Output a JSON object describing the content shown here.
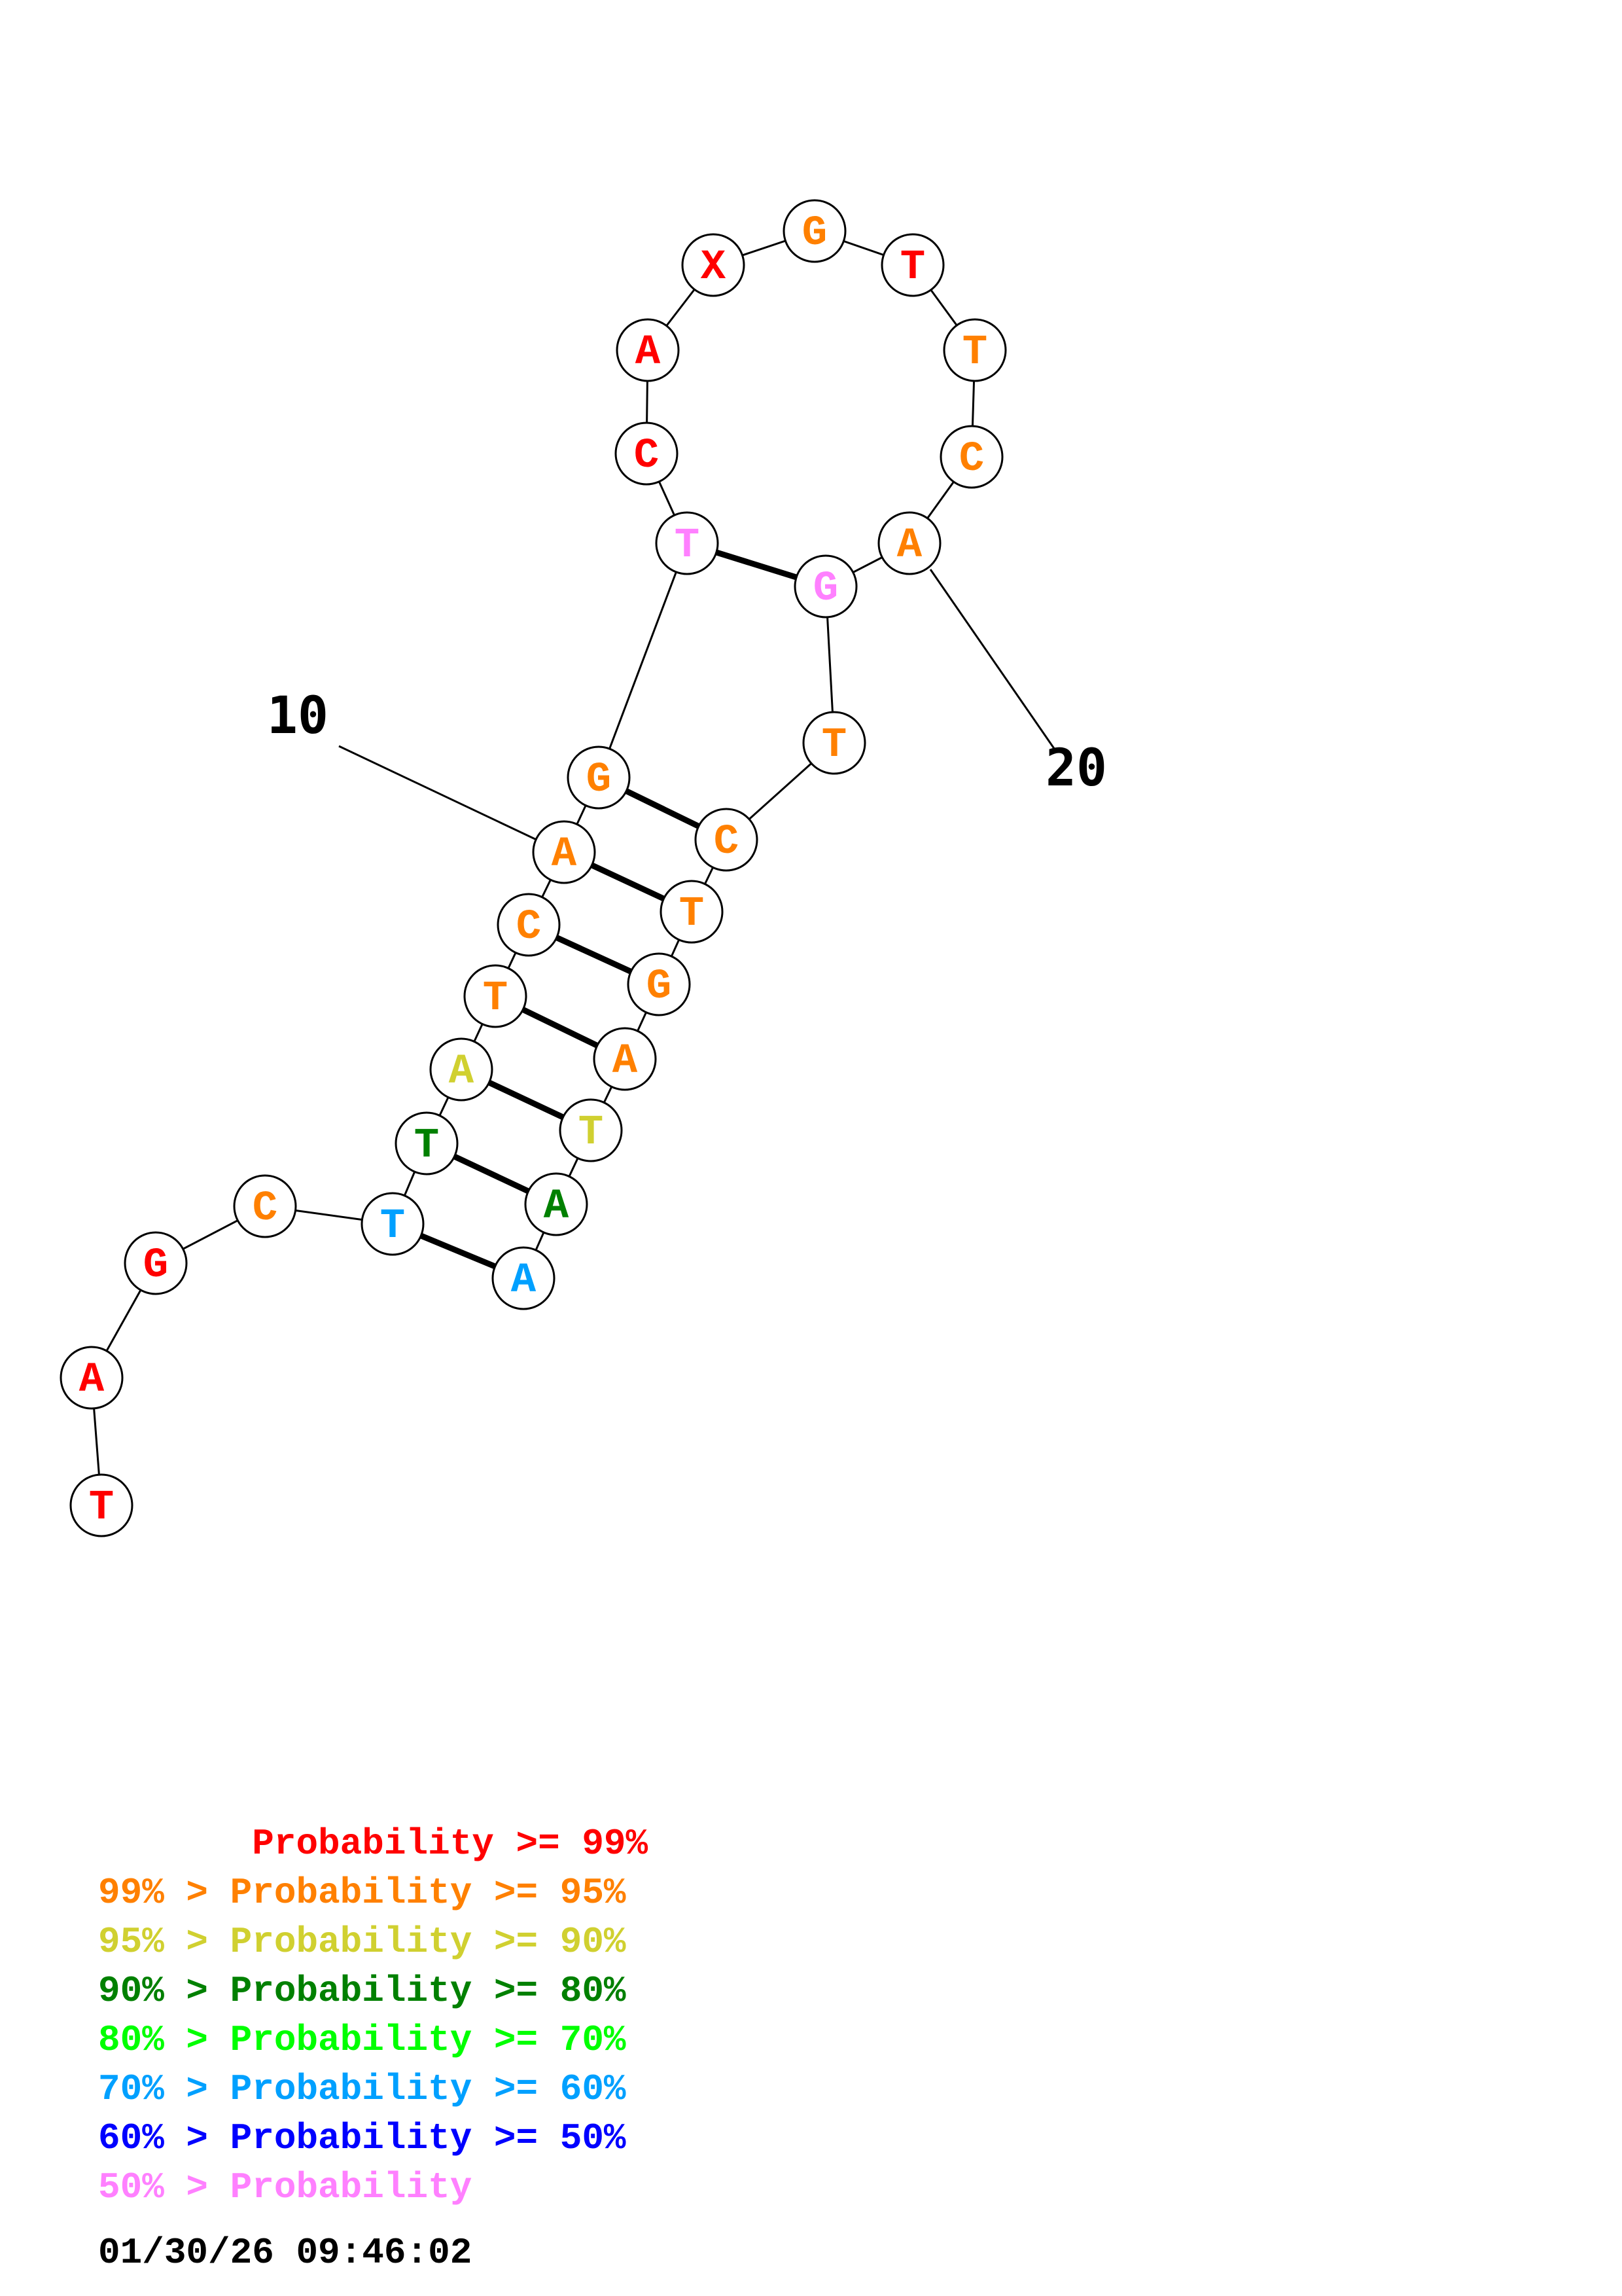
{
  "colors": {
    "p99": "#ff0000",
    "p95": "#ff8000",
    "p90": "#d0d030",
    "p80": "#008000",
    "p70": "#00ff00",
    "p60": "#00a0ff",
    "p50": "#0000ff",
    "plow": "#ff80ff"
  },
  "nucleotides": [
    {
      "index": 1,
      "base": "T",
      "prob": "p99"
    },
    {
      "index": 2,
      "base": "A",
      "prob": "p99"
    },
    {
      "index": 3,
      "base": "G",
      "prob": "p99"
    },
    {
      "index": 4,
      "base": "C",
      "prob": "p95"
    },
    {
      "index": 5,
      "base": "T",
      "prob": "p60"
    },
    {
      "index": 6,
      "base": "T",
      "prob": "p80"
    },
    {
      "index": 7,
      "base": "A",
      "prob": "p90"
    },
    {
      "index": 8,
      "base": "T",
      "prob": "p95"
    },
    {
      "index": 9,
      "base": "C",
      "prob": "p95"
    },
    {
      "index": 10,
      "base": "A",
      "prob": "p95"
    },
    {
      "index": 11,
      "base": "G",
      "prob": "p95"
    },
    {
      "index": 12,
      "base": "T",
      "prob": "plow"
    },
    {
      "index": 13,
      "base": "C",
      "prob": "p99"
    },
    {
      "index": 14,
      "base": "A",
      "prob": "p99"
    },
    {
      "index": 15,
      "base": "X",
      "prob": "p99"
    },
    {
      "index": 16,
      "base": "G",
      "prob": "p95"
    },
    {
      "index": 17,
      "base": "T",
      "prob": "p99"
    },
    {
      "index": 18,
      "base": "T",
      "prob": "p95"
    },
    {
      "index": 19,
      "base": "C",
      "prob": "p95"
    },
    {
      "index": 20,
      "base": "A",
      "prob": "p95"
    },
    {
      "index": 21,
      "base": "G",
      "prob": "plow"
    },
    {
      "index": 22,
      "base": "T",
      "prob": "p95"
    },
    {
      "index": 23,
      "base": "C",
      "prob": "p95"
    },
    {
      "index": 24,
      "base": "T",
      "prob": "p95"
    },
    {
      "index": 25,
      "base": "G",
      "prob": "p95"
    },
    {
      "index": 26,
      "base": "A",
      "prob": "p95"
    },
    {
      "index": 27,
      "base": "T",
      "prob": "p90"
    },
    {
      "index": 28,
      "base": "A",
      "prob": "p80"
    },
    {
      "index": 29,
      "base": "A",
      "prob": "p60"
    }
  ],
  "pairs": [
    [
      5,
      29
    ],
    [
      6,
      28
    ],
    [
      7,
      27
    ],
    [
      8,
      26
    ],
    [
      9,
      25
    ],
    [
      10,
      24
    ],
    [
      11,
      23
    ],
    [
      12,
      21
    ]
  ],
  "index_labels": [
    {
      "index": 10,
      "text": "10"
    },
    {
      "index": 20,
      "text": "20"
    }
  ],
  "legend": [
    {
      "text": "       Probability >= 99%",
      "prob": "p99"
    },
    {
      "text": "99% > Probability >= 95%",
      "prob": "p95"
    },
    {
      "text": "95% > Probability >= 90%",
      "prob": "p90"
    },
    {
      "text": "90% > Probability >= 80%",
      "prob": "p80"
    },
    {
      "text": "80% > Probability >= 70%",
      "prob": "p70"
    },
    {
      "text": "70% > Probability >= 60%",
      "prob": "p60"
    },
    {
      "text": "60% > Probability >= 50%",
      "prob": "p50"
    },
    {
      "text": "50% > Probability",
      "prob": "plow"
    }
  ],
  "timestamp": "01/30/26 09:46:02"
}
